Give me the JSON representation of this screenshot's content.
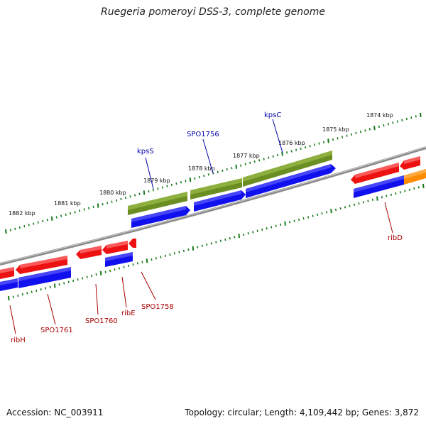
{
  "title": "Ruegeria pomeroyi DSS-3, complete genome",
  "accession": "Accession: NC_003911",
  "summary": "Topology: circular; Length: 4,109,442 bp; Genes: 3,872",
  "colors": {
    "backbone": "#8a8a8a",
    "tick": "#1a7a1a",
    "forward_gene": "#1010ee",
    "forward_cds_green": "#6b8e23",
    "reverse_gene": "#ee1111",
    "orange_gene": "#ff8c00",
    "forward_label": "#0000aa",
    "reverse_label": "#aa0000"
  },
  "kbp_labels": [
    "1882 kbp",
    "1881 kbp",
    "1880 kbp",
    "1879 kbp",
    "1878 kbp",
    "1877 kbp",
    "1876 kbp",
    "1875 kbp",
    "1874 kbp"
  ],
  "forward_labels": [
    "kpsS",
    "SPO1756",
    "kpsC"
  ],
  "reverse_labels": [
    "ribH",
    "SPO1761",
    "SPO1760",
    "ribE",
    "SPO1758",
    "ribD"
  ]
}
